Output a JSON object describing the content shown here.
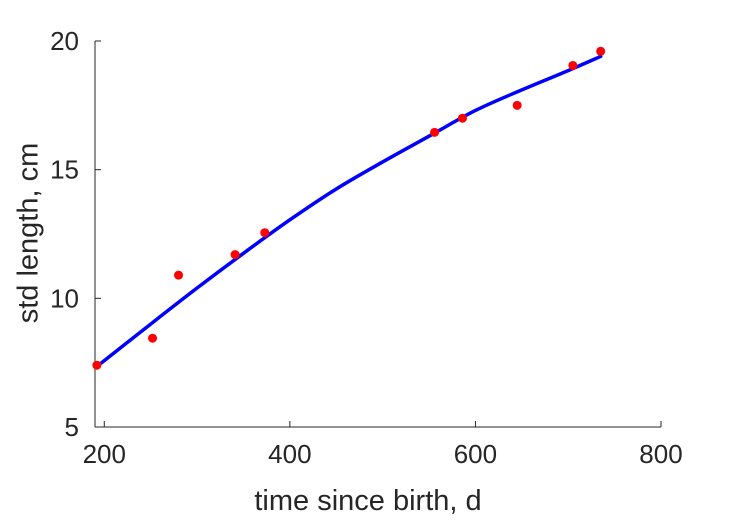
{
  "chart_data": {
    "type": "scatter",
    "xlabel": "time since birth, d",
    "ylabel": "std length, cm",
    "xlim": [
      190,
      800
    ],
    "ylim": [
      5,
      20
    ],
    "xticks": [
      200,
      400,
      600,
      800
    ],
    "yticks": [
      5,
      10,
      15,
      20
    ],
    "grid": false,
    "points": {
      "x": [
        192,
        252,
        280,
        341,
        373,
        556,
        586,
        645,
        705,
        735
      ],
      "y": [
        7.4,
        8.45,
        10.9,
        11.7,
        12.55,
        16.45,
        17.0,
        17.5,
        19.05,
        19.6
      ],
      "color": "#ff0000"
    },
    "fit": {
      "x": [
        192,
        250,
        300,
        350,
        400,
        450,
        500,
        550,
        600,
        650,
        700,
        735
      ],
      "y": [
        7.35,
        9.0,
        10.4,
        11.75,
        13.05,
        14.25,
        15.3,
        16.3,
        17.3,
        18.1,
        18.85,
        19.4
      ],
      "color": "#0000ff"
    }
  }
}
